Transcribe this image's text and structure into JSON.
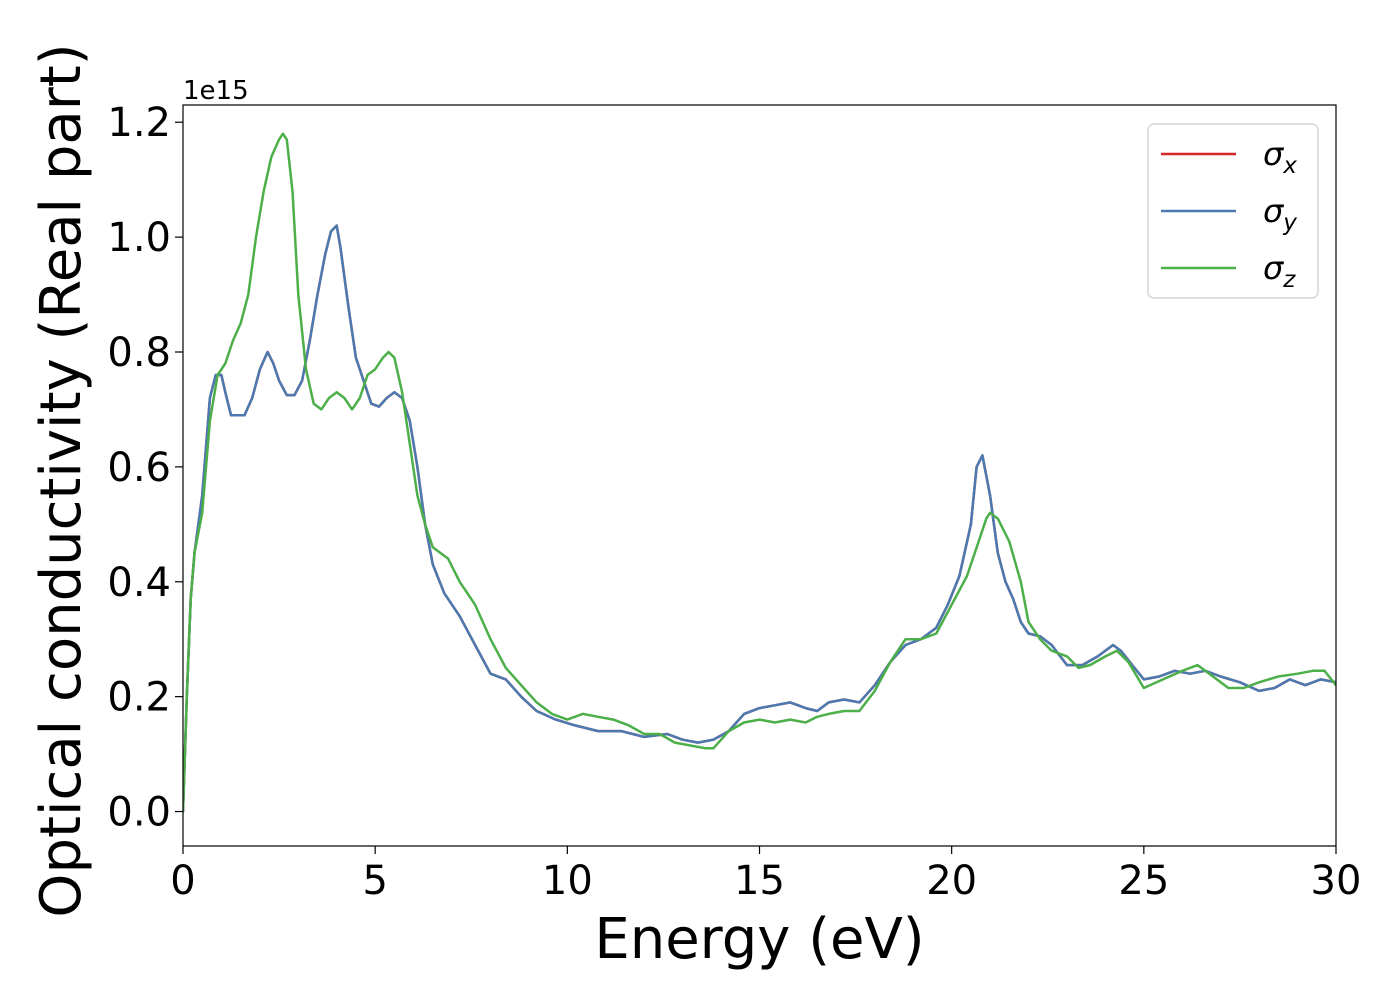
{
  "chart_data": {
    "type": "line",
    "title": "",
    "xlabel": "Energy (eV)",
    "ylabel": "Optical conductivity (Real part)",
    "y_offset_label": "1e15",
    "xlim": [
      0,
      30
    ],
    "ylim": [
      -0.06,
      1.23
    ],
    "y_scale_factor": 1000000000000000.0,
    "xticks": [
      0,
      5,
      10,
      15,
      20,
      25,
      30
    ],
    "xtick_labels": [
      "0",
      "5",
      "10",
      "15",
      "20",
      "25",
      "30"
    ],
    "yticks": [
      0.0,
      0.2,
      0.4,
      0.6,
      0.8,
      1.0,
      1.2
    ],
    "ytick_labels": [
      "0.0",
      "0.2",
      "0.4",
      "0.6",
      "0.8",
      "1.0",
      "1.2"
    ],
    "grid": false,
    "legend_position": "top-right",
    "series": [
      {
        "name": "σx",
        "legend_base": "σ",
        "legend_sub": "x",
        "color": "#d62728",
        "x": [
          0,
          0.1,
          0.2,
          0.3,
          0.5,
          0.7,
          0.85,
          1.0,
          1.1,
          1.25,
          1.4,
          1.6,
          1.8,
          2.0,
          2.2,
          2.35,
          2.5,
          2.7,
          2.9,
          3.1,
          3.3,
          3.5,
          3.7,
          3.85,
          4.0,
          4.1,
          4.3,
          4.5,
          4.7,
          4.9,
          5.1,
          5.3,
          5.5,
          5.7,
          5.9,
          6.1,
          6.3,
          6.5,
          6.8,
          7.2,
          7.6,
          8.0,
          8.4,
          8.8,
          9.2,
          9.7,
          10.2,
          10.8,
          11.4,
          12.0,
          12.6,
          13.0,
          13.4,
          13.8,
          14.2,
          14.6,
          15.0,
          15.4,
          15.8,
          16.2,
          16.5,
          16.8,
          17.2,
          17.6,
          18.0,
          18.4,
          18.8,
          19.2,
          19.6,
          19.9,
          20.2,
          20.5,
          20.65,
          20.8,
          21.0,
          21.2,
          21.4,
          21.6,
          21.8,
          22.0,
          22.3,
          22.6,
          23.0,
          23.4,
          23.8,
          24.2,
          24.4,
          24.7,
          25.0,
          25.4,
          25.8,
          26.2,
          26.6,
          27.0,
          27.5,
          28.0,
          28.4,
          28.8,
          29.2,
          29.6,
          30.0
        ],
        "y": [
          0.0,
          0.2,
          0.37,
          0.45,
          0.55,
          0.72,
          0.76,
          0.76,
          0.73,
          0.69,
          0.69,
          0.69,
          0.72,
          0.77,
          0.8,
          0.78,
          0.75,
          0.725,
          0.725,
          0.75,
          0.82,
          0.9,
          0.97,
          1.01,
          1.02,
          0.98,
          0.88,
          0.79,
          0.75,
          0.71,
          0.705,
          0.72,
          0.73,
          0.72,
          0.68,
          0.6,
          0.5,
          0.43,
          0.38,
          0.34,
          0.29,
          0.24,
          0.23,
          0.2,
          0.175,
          0.16,
          0.15,
          0.14,
          0.14,
          0.13,
          0.135,
          0.125,
          0.12,
          0.125,
          0.14,
          0.17,
          0.18,
          0.185,
          0.19,
          0.18,
          0.175,
          0.19,
          0.195,
          0.19,
          0.22,
          0.26,
          0.29,
          0.3,
          0.32,
          0.36,
          0.41,
          0.5,
          0.6,
          0.62,
          0.55,
          0.45,
          0.4,
          0.37,
          0.33,
          0.31,
          0.305,
          0.29,
          0.255,
          0.255,
          0.27,
          0.29,
          0.28,
          0.255,
          0.23,
          0.235,
          0.245,
          0.24,
          0.245,
          0.235,
          0.225,
          0.21,
          0.215,
          0.23,
          0.22,
          0.23,
          0.225
        ]
      },
      {
        "name": "σy",
        "legend_base": "σ",
        "legend_sub": "y",
        "color": "#4a7ab0",
        "x": [
          0,
          0.1,
          0.2,
          0.3,
          0.5,
          0.7,
          0.85,
          1.0,
          1.1,
          1.25,
          1.4,
          1.6,
          1.8,
          2.0,
          2.2,
          2.35,
          2.5,
          2.7,
          2.9,
          3.1,
          3.3,
          3.5,
          3.7,
          3.85,
          4.0,
          4.1,
          4.3,
          4.5,
          4.7,
          4.9,
          5.1,
          5.3,
          5.5,
          5.7,
          5.9,
          6.1,
          6.3,
          6.5,
          6.8,
          7.2,
          7.6,
          8.0,
          8.4,
          8.8,
          9.2,
          9.7,
          10.2,
          10.8,
          11.4,
          12.0,
          12.6,
          13.0,
          13.4,
          13.8,
          14.2,
          14.6,
          15.0,
          15.4,
          15.8,
          16.2,
          16.5,
          16.8,
          17.2,
          17.6,
          18.0,
          18.4,
          18.8,
          19.2,
          19.6,
          19.9,
          20.2,
          20.5,
          20.65,
          20.8,
          21.0,
          21.2,
          21.4,
          21.6,
          21.8,
          22.0,
          22.3,
          22.6,
          23.0,
          23.4,
          23.8,
          24.2,
          24.4,
          24.7,
          25.0,
          25.4,
          25.8,
          26.2,
          26.6,
          27.0,
          27.5,
          28.0,
          28.4,
          28.8,
          29.2,
          29.6,
          30.0
        ],
        "y": [
          0.0,
          0.2,
          0.37,
          0.45,
          0.55,
          0.72,
          0.76,
          0.76,
          0.73,
          0.69,
          0.69,
          0.69,
          0.72,
          0.77,
          0.8,
          0.78,
          0.75,
          0.725,
          0.725,
          0.75,
          0.82,
          0.9,
          0.97,
          1.01,
          1.02,
          0.98,
          0.88,
          0.79,
          0.75,
          0.71,
          0.705,
          0.72,
          0.73,
          0.72,
          0.68,
          0.6,
          0.5,
          0.43,
          0.38,
          0.34,
          0.29,
          0.24,
          0.23,
          0.2,
          0.175,
          0.16,
          0.15,
          0.14,
          0.14,
          0.13,
          0.135,
          0.125,
          0.12,
          0.125,
          0.14,
          0.17,
          0.18,
          0.185,
          0.19,
          0.18,
          0.175,
          0.19,
          0.195,
          0.19,
          0.22,
          0.26,
          0.29,
          0.3,
          0.32,
          0.36,
          0.41,
          0.5,
          0.6,
          0.62,
          0.55,
          0.45,
          0.4,
          0.37,
          0.33,
          0.31,
          0.305,
          0.29,
          0.255,
          0.255,
          0.27,
          0.29,
          0.28,
          0.255,
          0.23,
          0.235,
          0.245,
          0.24,
          0.245,
          0.235,
          0.225,
          0.21,
          0.215,
          0.23,
          0.22,
          0.23,
          0.225
        ]
      },
      {
        "name": "σz",
        "legend_base": "σ",
        "legend_sub": "z",
        "color": "#4daf4a",
        "x": [
          0,
          0.1,
          0.2,
          0.3,
          0.5,
          0.7,
          0.9,
          1.1,
          1.3,
          1.5,
          1.7,
          1.9,
          2.1,
          2.3,
          2.5,
          2.6,
          2.7,
          2.85,
          3.0,
          3.2,
          3.4,
          3.6,
          3.8,
          4.0,
          4.2,
          4.4,
          4.6,
          4.8,
          5.0,
          5.2,
          5.35,
          5.5,
          5.7,
          5.9,
          6.1,
          6.3,
          6.5,
          6.7,
          6.9,
          7.2,
          7.6,
          8.0,
          8.4,
          8.8,
          9.2,
          9.6,
          10.0,
          10.4,
          10.8,
          11.2,
          11.6,
          12.0,
          12.4,
          12.8,
          13.2,
          13.6,
          13.8,
          14.2,
          14.6,
          15.0,
          15.4,
          15.8,
          16.2,
          16.5,
          16.8,
          17.2,
          17.6,
          18.0,
          18.4,
          18.8,
          19.2,
          19.6,
          20.0,
          20.4,
          20.7,
          20.9,
          21.0,
          21.2,
          21.5,
          21.8,
          22.0,
          22.3,
          22.6,
          23.0,
          23.3,
          23.6,
          24.0,
          24.3,
          24.6,
          25.0,
          25.5,
          26.0,
          26.4,
          26.8,
          27.2,
          27.6,
          28.0,
          28.5,
          29.0,
          29.4,
          29.7,
          30.0
        ],
        "y": [
          0.0,
          0.2,
          0.37,
          0.45,
          0.52,
          0.68,
          0.76,
          0.78,
          0.82,
          0.85,
          0.9,
          1.0,
          1.08,
          1.14,
          1.17,
          1.18,
          1.17,
          1.08,
          0.9,
          0.77,
          0.71,
          0.7,
          0.72,
          0.73,
          0.72,
          0.7,
          0.72,
          0.76,
          0.77,
          0.79,
          0.8,
          0.79,
          0.73,
          0.64,
          0.55,
          0.5,
          0.46,
          0.45,
          0.44,
          0.4,
          0.36,
          0.3,
          0.25,
          0.22,
          0.19,
          0.17,
          0.16,
          0.17,
          0.165,
          0.16,
          0.15,
          0.135,
          0.135,
          0.12,
          0.115,
          0.11,
          0.11,
          0.14,
          0.155,
          0.16,
          0.155,
          0.16,
          0.155,
          0.165,
          0.17,
          0.175,
          0.175,
          0.21,
          0.26,
          0.3,
          0.3,
          0.31,
          0.36,
          0.41,
          0.47,
          0.51,
          0.52,
          0.51,
          0.47,
          0.4,
          0.33,
          0.3,
          0.28,
          0.27,
          0.25,
          0.255,
          0.27,
          0.28,
          0.26,
          0.215,
          0.23,
          0.245,
          0.255,
          0.235,
          0.215,
          0.215,
          0.225,
          0.235,
          0.24,
          0.245,
          0.245,
          0.22
        ]
      }
    ]
  }
}
